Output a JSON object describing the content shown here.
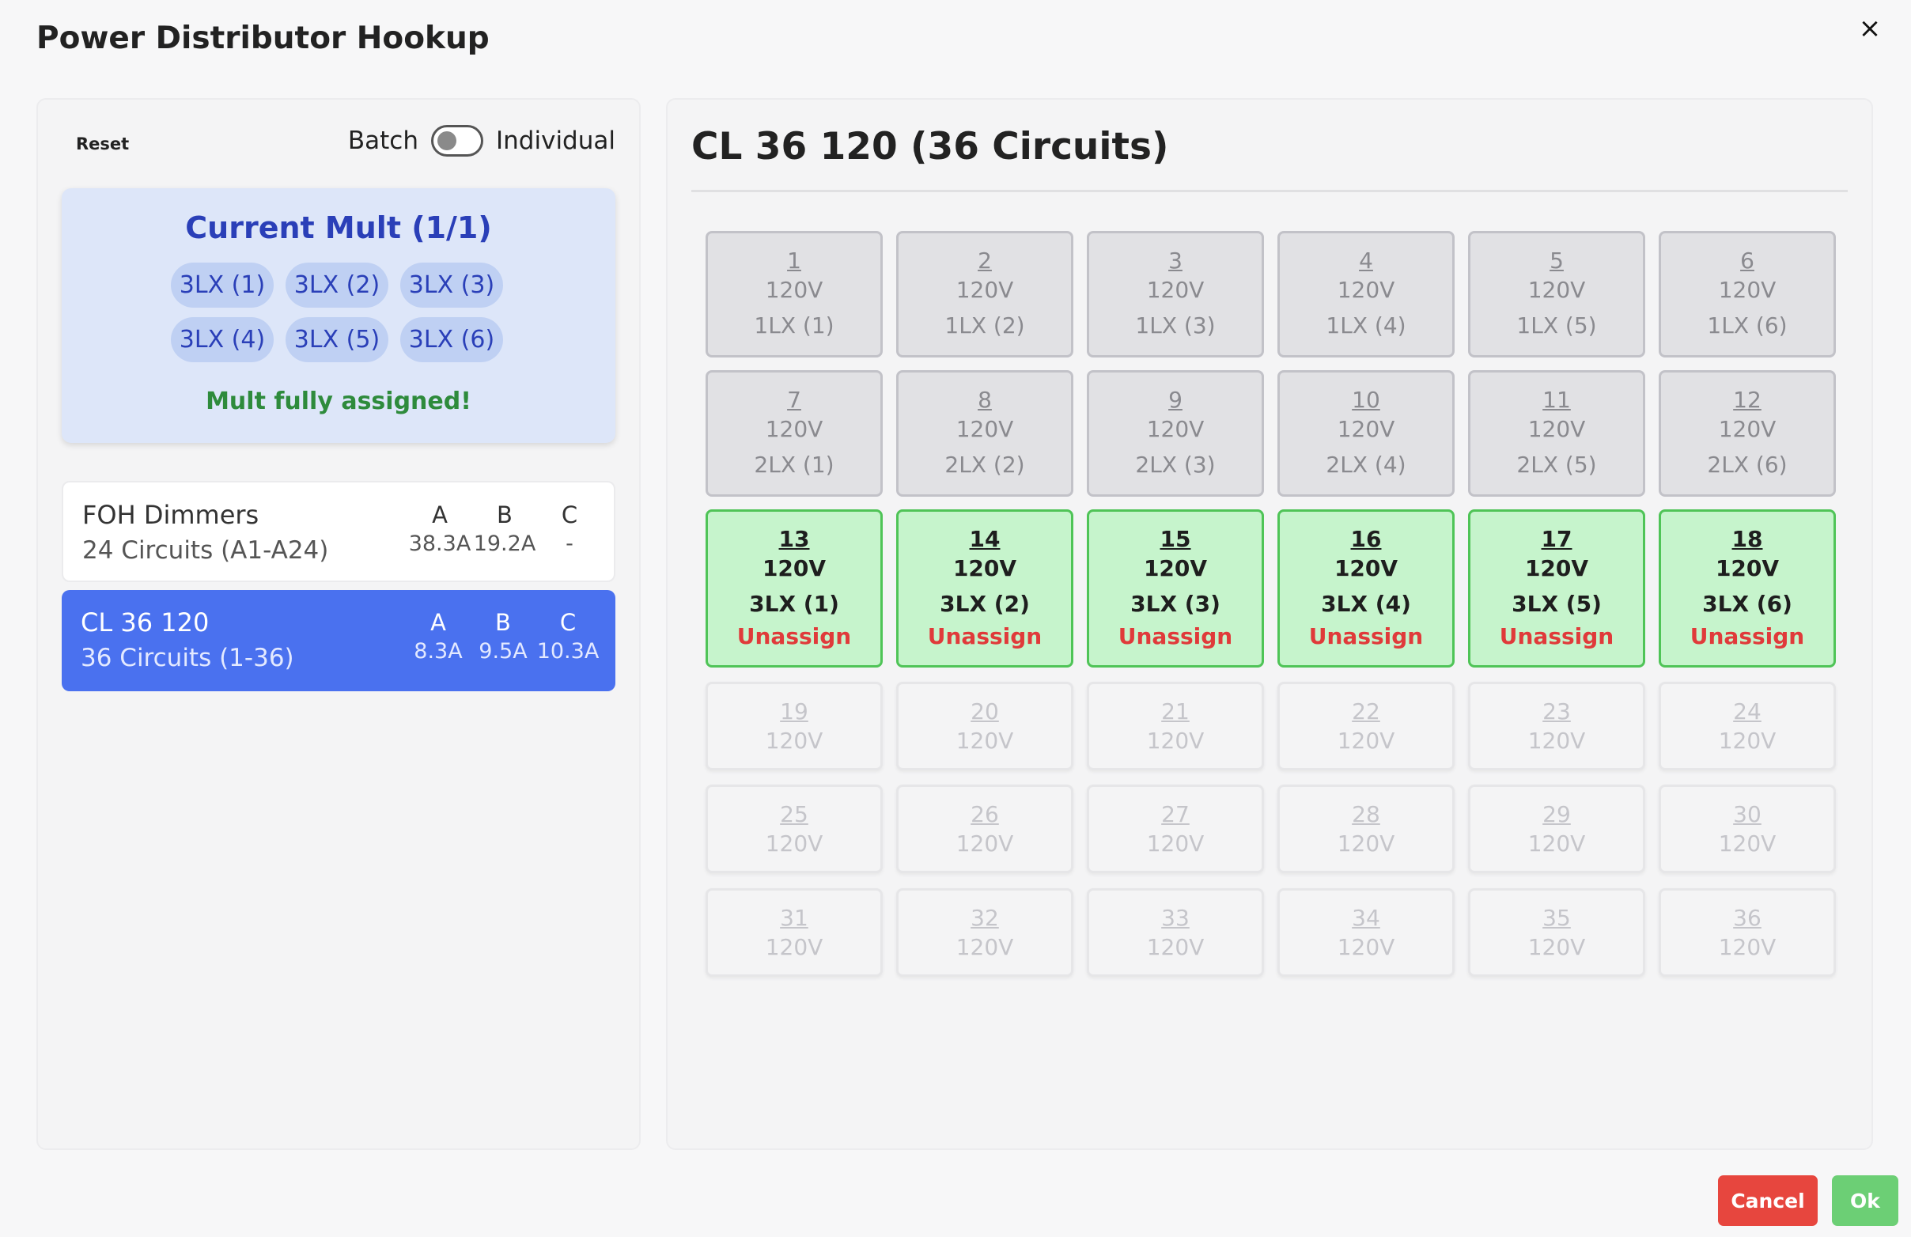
{
  "dialog": {
    "title": "Power Distributor Hookup",
    "close_icon": "×"
  },
  "left": {
    "reset_label": "Reset",
    "mode": {
      "batch_label": "Batch",
      "individual_label": "Individual",
      "toggle_state": "batch"
    },
    "mult": {
      "title": "Current Mult (1/1)",
      "chips": [
        "3LX (1)",
        "3LX (2)",
        "3LX (3)",
        "3LX (4)",
        "3LX (5)",
        "3LX (6)"
      ],
      "status": "Mult fully assigned!"
    },
    "distributors": [
      {
        "name": "FOH Dimmers",
        "sub": "24 Circuits (A1-A24)",
        "phases": [
          "A",
          "B",
          "C"
        ],
        "amps": [
          "38.3A",
          "19.2A",
          "-"
        ],
        "selected": false
      },
      {
        "name": "CL 36 120",
        "sub": "36 Circuits (1-36)",
        "phases": [
          "A",
          "B",
          "C"
        ],
        "amps": [
          "8.3A",
          "9.5A",
          "10.3A"
        ],
        "selected": true
      }
    ]
  },
  "right": {
    "title": "CL 36 120 (36 Circuits)",
    "unassign_label": "Unassign",
    "circuits": [
      {
        "num": "1",
        "volt": "120V",
        "label": "1LX (1)",
        "state": "assigned-other"
      },
      {
        "num": "2",
        "volt": "120V",
        "label": "1LX (2)",
        "state": "assigned-other"
      },
      {
        "num": "3",
        "volt": "120V",
        "label": "1LX (3)",
        "state": "assigned-other"
      },
      {
        "num": "4",
        "volt": "120V",
        "label": "1LX (4)",
        "state": "assigned-other"
      },
      {
        "num": "5",
        "volt": "120V",
        "label": "1LX (5)",
        "state": "assigned-other"
      },
      {
        "num": "6",
        "volt": "120V",
        "label": "1LX (6)",
        "state": "assigned-other"
      },
      {
        "num": "7",
        "volt": "120V",
        "label": "2LX (1)",
        "state": "assigned-other"
      },
      {
        "num": "8",
        "volt": "120V",
        "label": "2LX (2)",
        "state": "assigned-other"
      },
      {
        "num": "9",
        "volt": "120V",
        "label": "2LX (3)",
        "state": "assigned-other"
      },
      {
        "num": "10",
        "volt": "120V",
        "label": "2LX (4)",
        "state": "assigned-other"
      },
      {
        "num": "11",
        "volt": "120V",
        "label": "2LX (5)",
        "state": "assigned-other"
      },
      {
        "num": "12",
        "volt": "120V",
        "label": "2LX (6)",
        "state": "assigned-other"
      },
      {
        "num": "13",
        "volt": "120V",
        "label": "3LX (1)",
        "state": "assigned-current"
      },
      {
        "num": "14",
        "volt": "120V",
        "label": "3LX (2)",
        "state": "assigned-current"
      },
      {
        "num": "15",
        "volt": "120V",
        "label": "3LX (3)",
        "state": "assigned-current"
      },
      {
        "num": "16",
        "volt": "120V",
        "label": "3LX (4)",
        "state": "assigned-current"
      },
      {
        "num": "17",
        "volt": "120V",
        "label": "3LX (5)",
        "state": "assigned-current"
      },
      {
        "num": "18",
        "volt": "120V",
        "label": "3LX (6)",
        "state": "assigned-current"
      },
      {
        "num": "19",
        "volt": "120V",
        "label": "",
        "state": "free"
      },
      {
        "num": "20",
        "volt": "120V",
        "label": "",
        "state": "free"
      },
      {
        "num": "21",
        "volt": "120V",
        "label": "",
        "state": "free"
      },
      {
        "num": "22",
        "volt": "120V",
        "label": "",
        "state": "free"
      },
      {
        "num": "23",
        "volt": "120V",
        "label": "",
        "state": "free"
      },
      {
        "num": "24",
        "volt": "120V",
        "label": "",
        "state": "free"
      },
      {
        "num": "25",
        "volt": "120V",
        "label": "",
        "state": "free"
      },
      {
        "num": "26",
        "volt": "120V",
        "label": "",
        "state": "free"
      },
      {
        "num": "27",
        "volt": "120V",
        "label": "",
        "state": "free"
      },
      {
        "num": "28",
        "volt": "120V",
        "label": "",
        "state": "free"
      },
      {
        "num": "29",
        "volt": "120V",
        "label": "",
        "state": "free"
      },
      {
        "num": "30",
        "volt": "120V",
        "label": "",
        "state": "free"
      },
      {
        "num": "31",
        "volt": "120V",
        "label": "",
        "state": "free"
      },
      {
        "num": "32",
        "volt": "120V",
        "label": "",
        "state": "free"
      },
      {
        "num": "33",
        "volt": "120V",
        "label": "",
        "state": "free"
      },
      {
        "num": "34",
        "volt": "120V",
        "label": "",
        "state": "free"
      },
      {
        "num": "35",
        "volt": "120V",
        "label": "",
        "state": "free"
      },
      {
        "num": "36",
        "volt": "120V",
        "label": "",
        "state": "free"
      }
    ]
  },
  "footer": {
    "cancel_label": "Cancel",
    "ok_label": "Ok"
  },
  "colors": {
    "accent_blue": "#4a71ef",
    "mult_title": "#2a3fb8",
    "success_green": "#2e8b3c",
    "assigned_current_bg": "#c6f4cc",
    "danger_red": "#e03a3a",
    "cancel_button": "#e7463e",
    "ok_button": "#6ccf75"
  }
}
